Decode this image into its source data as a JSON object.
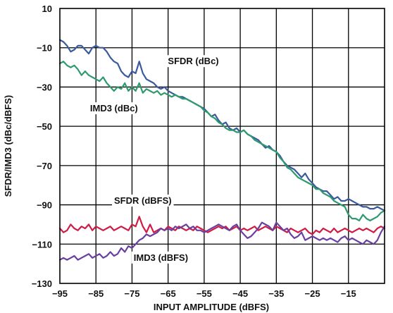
{
  "chart_data": {
    "type": "line",
    "title": "",
    "xlabel": "INPUT AMPLITUDE (dBFS)",
    "ylabel": "SFDR/IMD3 (dBc/dBFS)",
    "xlim": [
      -95,
      -5
    ],
    "ylim": [
      -130,
      10
    ],
    "xticks": [
      -95,
      -85,
      -75,
      -65,
      -55,
      -45,
      -35,
      -25,
      -15
    ],
    "yticks": [
      10,
      -10,
      -30,
      -50,
      -70,
      -90,
      -110,
      -130
    ],
    "grid": true,
    "series": [
      {
        "name": "SFDR (dBc)",
        "color": "#3a5a9e",
        "x": [
          -95,
          -94,
          -93,
          -92,
          -91,
          -90,
          -89,
          -88,
          -87,
          -86,
          -85,
          -84,
          -83,
          -82,
          -81,
          -80,
          -79,
          -78,
          -77,
          -76,
          -75,
          -74,
          -73,
          -72,
          -71,
          -70,
          -69,
          -68,
          -67,
          -66,
          -65,
          -64,
          -63,
          -62,
          -61,
          -60,
          -59,
          -58,
          -57,
          -56,
          -55,
          -54,
          -53,
          -52,
          -51,
          -50,
          -49,
          -48,
          -47,
          -46,
          -45,
          -44,
          -43,
          -42,
          -41,
          -40,
          -39,
          -38,
          -37,
          -36,
          -35,
          -34,
          -33,
          -32,
          -31,
          -30,
          -29,
          -28,
          -27,
          -26,
          -25,
          -24,
          -23,
          -22,
          -21,
          -20,
          -19,
          -18,
          -17,
          -16,
          -15,
          -14,
          -13,
          -12,
          -11,
          -10,
          -9,
          -8,
          -7,
          -6,
          -5
        ],
        "values": [
          -6,
          -7,
          -9,
          -12,
          -11,
          -9,
          -9,
          -11,
          -13,
          -10,
          -9,
          -10,
          -10,
          -12,
          -15,
          -17,
          -18,
          -22,
          -24,
          -25,
          -22,
          -23,
          -17,
          -23,
          -26,
          -27,
          -28,
          -30,
          -31,
          -30,
          -32,
          -33,
          -34,
          -35,
          -35,
          -36,
          -37,
          -38,
          -39,
          -40,
          -41,
          -43,
          -45,
          -44,
          -47,
          -49,
          -48,
          -51,
          -52,
          -51,
          -53,
          -52,
          -54,
          -55,
          -56,
          -57,
          -59,
          -61,
          -60,
          -62,
          -63,
          -65,
          -68,
          -70,
          -71,
          -72,
          -74,
          -76,
          -74,
          -77,
          -79,
          -81,
          -82,
          -83,
          -83,
          -85,
          -87,
          -86,
          -88,
          -88,
          -87,
          -88,
          -89,
          -90,
          -91,
          -91,
          -92,
          -92,
          -91,
          -92,
          -93
        ]
      },
      {
        "name": "IMD3 (dBc)",
        "color": "#2e9a6e",
        "x": [
          -95,
          -94,
          -93,
          -92,
          -91,
          -90,
          -89,
          -88,
          -87,
          -86,
          -85,
          -84,
          -83,
          -82,
          -81,
          -80,
          -79,
          -78,
          -77,
          -76,
          -75,
          -74,
          -73,
          -72,
          -71,
          -70,
          -69,
          -68,
          -67,
          -66,
          -65,
          -64,
          -63,
          -62,
          -61,
          -60,
          -59,
          -58,
          -57,
          -56,
          -55,
          -54,
          -53,
          -52,
          -51,
          -50,
          -49,
          -48,
          -47,
          -46,
          -45,
          -44,
          -43,
          -42,
          -41,
          -40,
          -39,
          -38,
          -37,
          -36,
          -35,
          -34,
          -33,
          -32,
          -31,
          -30,
          -29,
          -28,
          -27,
          -26,
          -25,
          -24,
          -23,
          -22,
          -21,
          -20,
          -19,
          -18,
          -17,
          -16,
          -15,
          -14,
          -13,
          -12,
          -11,
          -10,
          -9,
          -8,
          -7,
          -6,
          -5
        ],
        "values": [
          -18,
          -17,
          -19,
          -20,
          -19,
          -21,
          -24,
          -22,
          -24,
          -25,
          -26,
          -27,
          -25,
          -28,
          -30,
          -32,
          -30,
          -31,
          -28,
          -32,
          -30,
          -32,
          -28,
          -33,
          -31,
          -32,
          -33,
          -32,
          -34,
          -33,
          -34,
          -35,
          -34,
          -35,
          -36,
          -36,
          -37,
          -38,
          -39,
          -40,
          -42,
          -43,
          -45,
          -46,
          -48,
          -49,
          -51,
          -52,
          -52,
          -53,
          -53,
          -52,
          -54,
          -55,
          -57,
          -58,
          -59,
          -60,
          -61,
          -62,
          -63,
          -66,
          -68,
          -71,
          -72,
          -74,
          -76,
          -77,
          -78,
          -79,
          -80,
          -82,
          -82,
          -84,
          -85,
          -86,
          -88,
          -89,
          -90,
          -91,
          -95,
          -97,
          -97,
          -98,
          -95,
          -97,
          -98,
          -97,
          -96,
          -94,
          -93
        ]
      },
      {
        "name": "SFDR (dBFS)",
        "color": "#d01c44",
        "x": [
          -95,
          -94,
          -93,
          -92,
          -91,
          -90,
          -89,
          -88,
          -87,
          -86,
          -85,
          -84,
          -83,
          -82,
          -81,
          -80,
          -79,
          -78,
          -77,
          -76,
          -75,
          -74,
          -73,
          -72,
          -71,
          -70,
          -69,
          -68,
          -67,
          -66,
          -65,
          -64,
          -63,
          -62,
          -61,
          -60,
          -59,
          -58,
          -57,
          -56,
          -55,
          -54,
          -53,
          -52,
          -51,
          -50,
          -49,
          -48,
          -47,
          -46,
          -45,
          -44,
          -43,
          -42,
          -41,
          -40,
          -39,
          -38,
          -37,
          -36,
          -35,
          -34,
          -33,
          -32,
          -31,
          -30,
          -29,
          -28,
          -27,
          -26,
          -25,
          -24,
          -23,
          -22,
          -21,
          -20,
          -19,
          -18,
          -17,
          -16,
          -15,
          -14,
          -13,
          -12,
          -11,
          -10,
          -9,
          -8,
          -7,
          -6,
          -5
        ],
        "values": [
          -102,
          -104,
          -103,
          -100,
          -102,
          -103,
          -101,
          -102,
          -100,
          -103,
          -101,
          -102,
          -103,
          -102,
          -101,
          -103,
          -102,
          -101,
          -102,
          -103,
          -100,
          -101,
          -96,
          -101,
          -104,
          -100,
          -104,
          -103,
          -102,
          -103,
          -101,
          -102,
          -103,
          -101,
          -102,
          -103,
          -102,
          -103,
          -101,
          -102,
          -103,
          -104,
          -103,
          -102,
          -101,
          -102,
          -101,
          -103,
          -102,
          -101,
          -103,
          -102,
          -103,
          -102,
          -101,
          -103,
          -102,
          -101,
          -102,
          -103,
          -101,
          -102,
          -103,
          -104,
          -102,
          -103,
          -104,
          -103,
          -102,
          -104,
          -105,
          -103,
          -104,
          -102,
          -103,
          -104,
          -102,
          -104,
          -103,
          -102,
          -103,
          -104,
          -103,
          -102,
          -103,
          -102,
          -103,
          -104,
          -102,
          -101,
          -102
        ]
      },
      {
        "name": "IMD3 (dBFS)",
        "color": "#6a3fa0",
        "x": [
          -95,
          -94,
          -93,
          -92,
          -91,
          -90,
          -89,
          -88,
          -87,
          -86,
          -85,
          -84,
          -83,
          -82,
          -81,
          -80,
          -79,
          -78,
          -77,
          -76,
          -75,
          -74,
          -73,
          -72,
          -71,
          -70,
          -69,
          -68,
          -67,
          -66,
          -65,
          -64,
          -63,
          -62,
          -61,
          -60,
          -59,
          -58,
          -57,
          -56,
          -55,
          -54,
          -53,
          -52,
          -51,
          -50,
          -49,
          -48,
          -47,
          -46,
          -45,
          -44,
          -43,
          -42,
          -41,
          -40,
          -39,
          -38,
          -37,
          -36,
          -35,
          -34,
          -33,
          -32,
          -31,
          -30,
          -29,
          -28,
          -27,
          -26,
          -25,
          -24,
          -23,
          -22,
          -21,
          -20,
          -19,
          -18,
          -17,
          -16,
          -15,
          -14,
          -13,
          -12,
          -11,
          -10,
          -9,
          -8,
          -7,
          -6,
          -5
        ],
        "values": [
          -118,
          -117,
          -118,
          -117,
          -116,
          -118,
          -117,
          -116,
          -115,
          -117,
          -116,
          -115,
          -117,
          -116,
          -114,
          -116,
          -115,
          -112,
          -114,
          -111,
          -112,
          -110,
          -108,
          -107,
          -105,
          -106,
          -105,
          -104,
          -102,
          -103,
          -102,
          -103,
          -101,
          -102,
          -101,
          -100,
          -102,
          -101,
          -103,
          -103,
          -104,
          -103,
          -102,
          -101,
          -100,
          -101,
          -102,
          -103,
          -101,
          -100,
          -103,
          -105,
          -107,
          -106,
          -104,
          -102,
          -99,
          -100,
          -101,
          -103,
          -99,
          -101,
          -103,
          -102,
          -105,
          -107,
          -106,
          -104,
          -108,
          -107,
          -106,
          -107,
          -108,
          -107,
          -108,
          -107,
          -108,
          -109,
          -107,
          -106,
          -108,
          -107,
          -108,
          -109,
          -110,
          -108,
          -109,
          -110,
          -108,
          -104,
          -101
        ]
      }
    ],
    "annotations": [
      {
        "text": "SFDR (dBc)",
        "x": -58,
        "y": -17
      },
      {
        "text": "IMD3 (dBc)",
        "x": -80,
        "y": -41
      },
      {
        "text": "SFDR (dBFS)",
        "x": -72,
        "y": -88
      },
      {
        "text": "IMD3 (dBFS)",
        "x": -67,
        "y": -117
      }
    ]
  }
}
